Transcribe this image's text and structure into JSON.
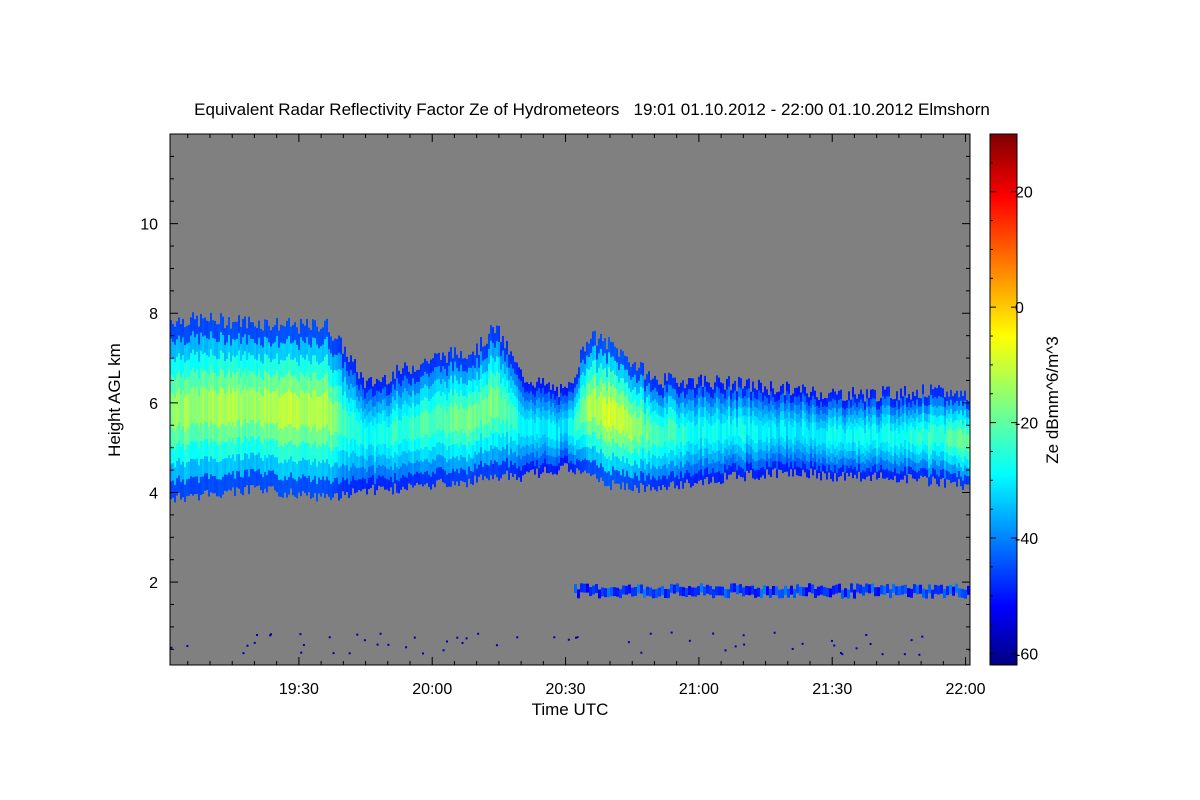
{
  "chart_data": {
    "type": "heatmap",
    "title": "Equivalent Radar Reflectivity Factor Ze of Hydrometeors   19:01 01.10.2012 - 22:00 01.10.2012 Elmshorn",
    "xlabel": "Time UTC",
    "ylabel": "Height AGL km",
    "x_range_min": [
      1141,
      1321
    ],
    "x_ticks_min": [
      1170,
      1200,
      1230,
      1260,
      1290,
      1320
    ],
    "x_tick_labels": [
      "19:30",
      "20:00",
      "20:30",
      "21:00",
      "21:30",
      "22:00"
    ],
    "ylim": [
      0.15,
      12.0
    ],
    "y_ticks": [
      2,
      4,
      6,
      8,
      10
    ],
    "y_tick_labels": [
      "2",
      "4",
      "6",
      "8",
      "10"
    ],
    "background_color": "#808080",
    "colorbar": {
      "label": "Ze dBmm^6/m^3",
      "range": [
        -62,
        30
      ],
      "ticks": [
        -60,
        -40,
        -20,
        0,
        20
      ],
      "tick_labels": [
        "-60",
        "-40",
        "-20",
        "0",
        "20"
      ],
      "colormap": "jet"
    },
    "cloud_layer": {
      "description_points_min": [
        1141,
        1150,
        1160,
        1170,
        1176,
        1180,
        1185,
        1190,
        1200,
        1210,
        1214,
        1220,
        1230,
        1235,
        1240,
        1250,
        1260,
        1270,
        1280,
        1290,
        1300,
        1310,
        1320
      ],
      "top_km": [
        7.85,
        7.85,
        7.8,
        7.7,
        7.75,
        7.2,
        6.4,
        6.6,
        7.0,
        7.2,
        7.7,
        6.6,
        6.2,
        7.5,
        7.3,
        6.5,
        6.5,
        6.4,
        6.3,
        6.2,
        6.2,
        6.25,
        6.2
      ],
      "base_km": [
        4.0,
        4.1,
        4.2,
        4.1,
        4.0,
        4.1,
        4.2,
        4.2,
        4.3,
        4.4,
        4.5,
        4.5,
        4.7,
        4.5,
        4.3,
        4.2,
        4.4,
        4.5,
        4.6,
        4.5,
        4.5,
        4.4,
        4.3
      ],
      "peak_ze_dbz": [
        -12,
        -10,
        -10,
        -8,
        -8,
        -20,
        -25,
        -22,
        -18,
        -14,
        -14,
        -25,
        -28,
        -10,
        -5,
        -18,
        -25,
        -25,
        -28,
        -25,
        -25,
        -22,
        -15
      ]
    },
    "low_layer": {
      "start_min": 1232,
      "end_min": 1321,
      "height_km": 1.8,
      "peak_ze_dbz": -45
    }
  }
}
